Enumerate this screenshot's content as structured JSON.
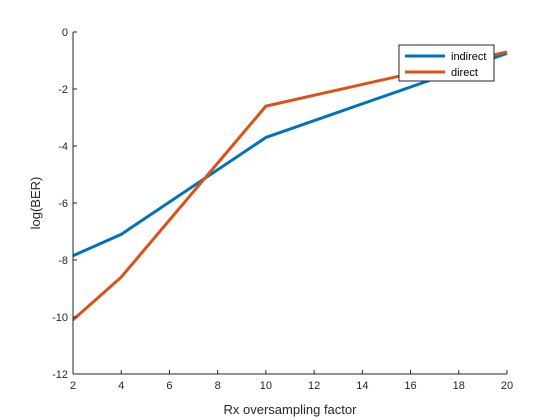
{
  "chart_data": {
    "type": "line",
    "title": "",
    "xlabel": "Rx oversampling factor",
    "ylabel": "log(BER)",
    "xlim": [
      2,
      20
    ],
    "ylim": [
      -12,
      0
    ],
    "xticks": [
      2,
      4,
      6,
      8,
      10,
      12,
      14,
      16,
      18,
      20
    ],
    "yticks": [
      0,
      -2,
      -4,
      -6,
      -8,
      -10,
      -12
    ],
    "x": [
      2,
      4,
      10,
      20
    ],
    "grid": false,
    "legend_position": "top-right",
    "series": [
      {
        "name": "indirect",
        "color": "#0072BD",
        "values": [
          -7.85,
          -7.1,
          -3.7,
          -0.75
        ]
      },
      {
        "name": "direct",
        "color": "#D95319",
        "values": [
          -10.1,
          -8.6,
          -2.6,
          -0.7
        ]
      }
    ]
  }
}
